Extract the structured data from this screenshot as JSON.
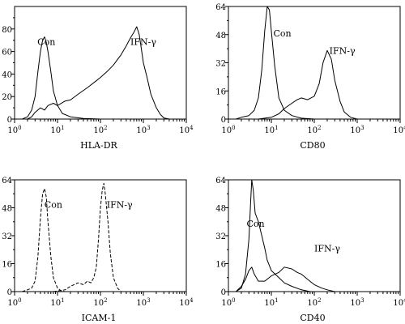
{
  "chart_data": [
    {
      "type": "line",
      "xlabel": "HLA-DR",
      "x_scale": "log",
      "xlim": [
        1,
        10000
      ],
      "ylim": [
        0,
        100
      ],
      "xticks": [
        "10^0",
        "10^1",
        "10^2",
        "10^3",
        "10^4"
      ],
      "yticks": [
        "0",
        "20",
        "40",
        "60",
        "80"
      ],
      "line_style": "solid",
      "series": [
        {
          "name": "Con",
          "label_at": [
            5.5,
            66
          ],
          "points": [
            [
              1.5,
              0
            ],
            [
              2,
              2
            ],
            [
              2.5,
              8
            ],
            [
              3,
              20
            ],
            [
              3.5,
              42
            ],
            [
              4,
              60
            ],
            [
              4.5,
              70
            ],
            [
              5,
              73
            ],
            [
              5.5,
              68
            ],
            [
              6,
              60
            ],
            [
              7,
              42
            ],
            [
              8,
              25
            ],
            [
              10,
              12
            ],
            [
              13,
              5
            ],
            [
              20,
              2
            ],
            [
              40,
              0.5
            ],
            [
              100,
              0
            ]
          ]
        },
        {
          "name": "IFN-γ",
          "label_at": [
            1000,
            66
          ],
          "points": [
            [
              2,
              0
            ],
            [
              2.5,
              2
            ],
            [
              3,
              6
            ],
            [
              4,
              10
            ],
            [
              5,
              8
            ],
            [
              6,
              12
            ],
            [
              8,
              14
            ],
            [
              10,
              12
            ],
            [
              15,
              16
            ],
            [
              20,
              17
            ],
            [
              30,
              22
            ],
            [
              50,
              28
            ],
            [
              80,
              34
            ],
            [
              100,
              37
            ],
            [
              150,
              43
            ],
            [
              200,
              48
            ],
            [
              300,
              57
            ],
            [
              400,
              65
            ],
            [
              500,
              72
            ],
            [
              600,
              77
            ],
            [
              700,
              82
            ],
            [
              800,
              75
            ],
            [
              900,
              62
            ],
            [
              1000,
              50
            ],
            [
              1200,
              38
            ],
            [
              1500,
              22
            ],
            [
              2000,
              10
            ],
            [
              2500,
              4
            ],
            [
              3000,
              1
            ],
            [
              4000,
              0
            ]
          ]
        }
      ]
    },
    {
      "type": "line",
      "xlabel": "CD80",
      "x_scale": "log",
      "xlim": [
        1,
        10000
      ],
      "ylim": [
        0,
        64
      ],
      "xticks": [
        "10^0",
        "10^1",
        "10^2",
        "10^3",
        "10^4"
      ],
      "yticks": [
        "0",
        "16",
        "32",
        "48",
        "64"
      ],
      "line_style": "solid",
      "series": [
        {
          "name": "Con",
          "label_at": [
            18,
            47
          ],
          "points": [
            [
              1.5,
              0
            ],
            [
              2,
              1
            ],
            [
              3,
              2
            ],
            [
              4,
              5
            ],
            [
              5,
              12
            ],
            [
              6,
              28
            ],
            [
              7,
              50
            ],
            [
              8,
              64
            ],
            [
              9,
              62
            ],
            [
              10,
              50
            ],
            [
              12,
              30
            ],
            [
              15,
              12
            ],
            [
              20,
              5
            ],
            [
              30,
              2
            ],
            [
              50,
              0.5
            ],
            [
              100,
              0
            ]
          ]
        },
        {
          "name": "IFN-γ",
          "label_at": [
            450,
            37
          ],
          "points": [
            [
              5,
              0
            ],
            [
              10,
              1
            ],
            [
              15,
              3
            ],
            [
              20,
              6
            ],
            [
              30,
              9
            ],
            [
              40,
              11
            ],
            [
              50,
              12
            ],
            [
              70,
              11
            ],
            [
              100,
              13
            ],
            [
              130,
              20
            ],
            [
              160,
              32
            ],
            [
              200,
              39
            ],
            [
              250,
              34
            ],
            [
              300,
              22
            ],
            [
              400,
              10
            ],
            [
              500,
              4
            ],
            [
              700,
              1
            ],
            [
              1000,
              0
            ]
          ]
        }
      ]
    },
    {
      "type": "line",
      "xlabel": "ICAM-1",
      "x_scale": "log",
      "xlim": [
        1,
        10000
      ],
      "ylim": [
        0,
        64
      ],
      "xticks": [
        "10^0",
        "10^1",
        "10^2",
        "10^3",
        "10^4"
      ],
      "yticks": [
        "0",
        "16",
        "32",
        "48",
        "64"
      ],
      "line_style": "dashed",
      "series": [
        {
          "name": "Con",
          "label_at": [
            8,
            48
          ],
          "points": [
            [
              1.5,
              0
            ],
            [
              2,
              1
            ],
            [
              2.5,
              2
            ],
            [
              3,
              6
            ],
            [
              3.5,
              20
            ],
            [
              4,
              42
            ],
            [
              4.5,
              56
            ],
            [
              5,
              59
            ],
            [
              5.5,
              54
            ],
            [
              6,
              40
            ],
            [
              7,
              20
            ],
            [
              8,
              8
            ],
            [
              10,
              2
            ],
            [
              12,
              0.5
            ],
            [
              15,
              0
            ]
          ]
        },
        {
          "name": "IFN-γ",
          "label_at": [
            280,
            48
          ],
          "points": [
            [
              8,
              0
            ],
            [
              15,
              1
            ],
            [
              20,
              3
            ],
            [
              30,
              5
            ],
            [
              40,
              4
            ],
            [
              50,
              6
            ],
            [
              60,
              5
            ],
            [
              70,
              8
            ],
            [
              80,
              14
            ],
            [
              90,
              30
            ],
            [
              100,
              48
            ],
            [
              110,
              58
            ],
            [
              120,
              62
            ],
            [
              130,
              56
            ],
            [
              150,
              40
            ],
            [
              170,
              22
            ],
            [
              200,
              8
            ],
            [
              250,
              2
            ],
            [
              300,
              0
            ]
          ]
        }
      ]
    },
    {
      "type": "line",
      "xlabel": "CD40",
      "x_scale": "log",
      "xlim": [
        1,
        10000
      ],
      "ylim": [
        0,
        64
      ],
      "xticks": [
        "10^0",
        "10^1",
        "10^2",
        "10^3",
        "10^4"
      ],
      "yticks": [
        "0",
        "16",
        "32",
        "48",
        "64"
      ],
      "line_style": "solid",
      "series": [
        {
          "name": "Con",
          "label_at": [
            4.3,
            37
          ],
          "points": [
            [
              1.5,
              0
            ],
            [
              2,
              2
            ],
            [
              2.5,
              10
            ],
            [
              3,
              30
            ],
            [
              3.3,
              52
            ],
            [
              3.5,
              64
            ],
            [
              3.8,
              58
            ],
            [
              4.2,
              45
            ],
            [
              5,
              40
            ],
            [
              6,
              32
            ],
            [
              7,
              25
            ],
            [
              8,
              18
            ],
            [
              10,
              12
            ],
            [
              15,
              8
            ],
            [
              20,
              5
            ],
            [
              30,
              3
            ],
            [
              50,
              1
            ],
            [
              80,
              0
            ]
          ]
        },
        {
          "name": "IFN-γ",
          "label_at": [
            200,
            23
          ],
          "points": [
            [
              1.5,
              0
            ],
            [
              2,
              3
            ],
            [
              2.5,
              7
            ],
            [
              3,
              12
            ],
            [
              3.5,
              14
            ],
            [
              4,
              10
            ],
            [
              5,
              6
            ],
            [
              7,
              6
            ],
            [
              10,
              9
            ],
            [
              15,
              11
            ],
            [
              20,
              14
            ],
            [
              30,
              13
            ],
            [
              40,
              11
            ],
            [
              50,
              10
            ],
            [
              70,
              7
            ],
            [
              100,
              4
            ],
            [
              150,
              2
            ],
            [
              200,
              1
            ],
            [
              300,
              0
            ]
          ]
        }
      ]
    }
  ]
}
